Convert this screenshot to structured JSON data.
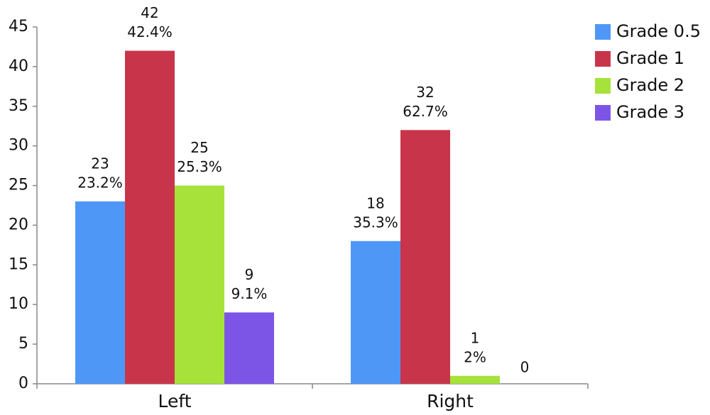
{
  "chart_data": {
    "type": "bar",
    "categories": [
      "Left",
      "Right"
    ],
    "series": [
      {
        "name": "Grade 0.5",
        "color": "#4f97f7",
        "values": [
          23,
          18
        ],
        "percent_labels": [
          "23.2%",
          "35.3%"
        ]
      },
      {
        "name": "Grade 1",
        "color": "#c8354a",
        "values": [
          42,
          32
        ],
        "percent_labels": [
          "42.4%",
          "62.7%"
        ]
      },
      {
        "name": "Grade 2",
        "color": "#a6e23a",
        "values": [
          25,
          1
        ],
        "percent_labels": [
          "25.3%",
          "2%"
        ]
      },
      {
        "name": "Grade 3",
        "color": "#7d55e6",
        "values": [
          9,
          0
        ],
        "percent_labels": [
          "9.1%",
          null
        ]
      }
    ],
    "ylim": [
      0,
      45
    ],
    "yticks": [
      0,
      5,
      10,
      15,
      20,
      25,
      30,
      35,
      40,
      45
    ],
    "legend": "right"
  }
}
